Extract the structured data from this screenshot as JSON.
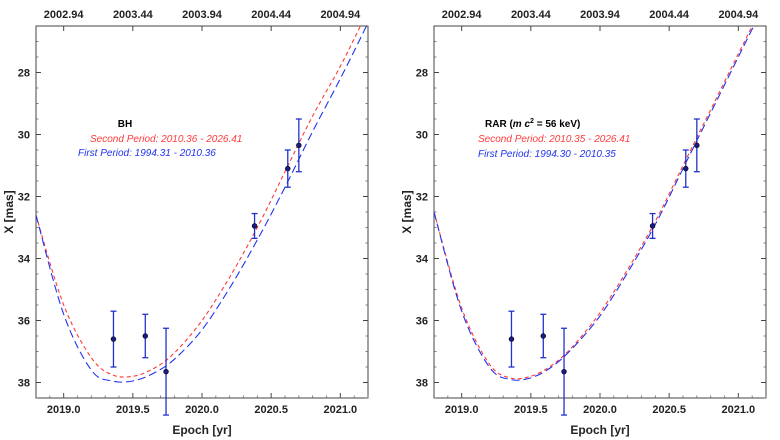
{
  "chart_data": [
    {
      "type": "line",
      "xlabel": "Epoch [yr]",
      "ylabel": "X [mas]",
      "xlim": [
        2018.8,
        2021.2
      ],
      "ylim": [
        38.5,
        26.5
      ],
      "y_inverted": true,
      "x_ticks": [
        "2019.0",
        "2019.5",
        "2020.0",
        "2020.5",
        "2021.0"
      ],
      "y_ticks": [
        "28",
        "30",
        "32",
        "34",
        "36",
        "38"
      ],
      "top_ticks": [
        "2002.94",
        "2003.44",
        "2003.94",
        "2004.44",
        "2004.94"
      ],
      "annotation": {
        "title": "BH",
        "line1": "Second Period: 2010.36 - 2026.41",
        "line2": "First Period: 1994.31 - 2010.36"
      },
      "colors": {
        "red": "#ff3b3b",
        "blue": "#2233ee",
        "points": "#1a1a8c"
      },
      "series": [
        {
          "x": [
            2018.8,
            2019.0,
            2019.2,
            2019.35,
            2019.5,
            2019.65,
            2019.8,
            2020.0,
            2020.2,
            2020.4,
            2020.6,
            2020.8,
            2021.0,
            2021.2
          ],
          "y": [
            32.6,
            35.5,
            37.2,
            37.75,
            37.8,
            37.55,
            37.05,
            36.0,
            34.6,
            33.0,
            31.2,
            29.4,
            27.8,
            26.0
          ]
        },
        {
          "x": [
            2018.8,
            2019.0,
            2019.2,
            2019.35,
            2019.5,
            2019.65,
            2019.8,
            2020.0,
            2020.2,
            2020.4,
            2020.6,
            2020.8,
            2021.0,
            2021.2
          ],
          "y": [
            32.6,
            35.8,
            37.6,
            37.95,
            37.95,
            37.7,
            37.25,
            36.3,
            34.95,
            33.4,
            31.7,
            29.9,
            28.2,
            26.4
          ]
        }
      ],
      "points": {
        "x": [
          2019.36,
          2019.59,
          2019.74,
          2020.38,
          2020.62,
          2020.7
        ],
        "y": [
          36.6,
          36.5,
          37.65,
          32.95,
          31.1,
          30.35
        ],
        "err": [
          0.9,
          0.7,
          1.4,
          0.4,
          0.6,
          0.85
        ]
      }
    },
    {
      "type": "line",
      "xlabel": "Epoch [yr]",
      "ylabel": "X [mas]",
      "xlim": [
        2018.8,
        2021.2
      ],
      "ylim": [
        38.5,
        26.5
      ],
      "y_inverted": true,
      "x_ticks": [
        "2019.0",
        "2019.5",
        "2020.0",
        "2020.5",
        "2021.0"
      ],
      "y_ticks": [
        "28",
        "30",
        "32",
        "34",
        "36",
        "38"
      ],
      "top_ticks": [
        "2002.94",
        "2003.44",
        "2003.94",
        "2004.44",
        "2004.94"
      ],
      "annotation": {
        "title": "RAR (m c² = 56 keV)",
        "line1": "Second Period: 2010.35 - 2026.41",
        "line2": "First Period: 1994.30 - 2010.35"
      },
      "colors": {
        "red": "#ff3b3b",
        "blue": "#2233ee",
        "points": "#1a1a8c"
      },
      "series": [
        {
          "x": [
            2018.8,
            2019.0,
            2019.2,
            2019.35,
            2019.5,
            2019.65,
            2019.8,
            2020.0,
            2020.2,
            2020.4,
            2020.6,
            2020.8,
            2021.0,
            2021.2
          ],
          "y": [
            32.5,
            35.6,
            37.4,
            37.85,
            37.8,
            37.45,
            36.85,
            35.75,
            34.35,
            32.8,
            31.0,
            29.2,
            27.4,
            25.6
          ]
        },
        {
          "x": [
            2018.8,
            2019.0,
            2019.2,
            2019.35,
            2019.5,
            2019.65,
            2019.8,
            2020.0,
            2020.2,
            2020.4,
            2020.6,
            2020.8,
            2021.0,
            2021.2
          ],
          "y": [
            32.5,
            35.7,
            37.5,
            37.9,
            37.85,
            37.5,
            36.9,
            35.85,
            34.45,
            32.9,
            31.1,
            29.3,
            27.5,
            25.7
          ]
        }
      ],
      "points": {
        "x": [
          2019.36,
          2019.59,
          2019.74,
          2020.38,
          2020.62,
          2020.7
        ],
        "y": [
          36.6,
          36.5,
          37.65,
          32.95,
          31.1,
          30.35
        ],
        "err": [
          0.9,
          0.7,
          1.4,
          0.4,
          0.6,
          0.85
        ]
      }
    }
  ]
}
